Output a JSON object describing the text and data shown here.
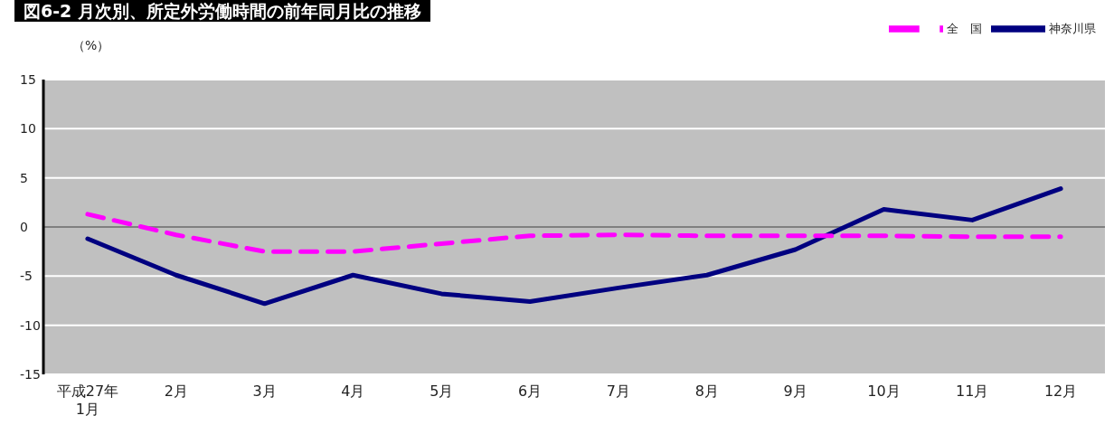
{
  "chart_data": {
    "type": "line",
    "title": "図6-2 月次別、所定外労働時間の前年同月比の推移",
    "ylabel": "（%）",
    "categories": [
      "平成27年\n1月",
      "2月",
      "3月",
      "4月",
      "5月",
      "6月",
      "7月",
      "8月",
      "9月",
      "10月",
      "11月",
      "12月"
    ],
    "series": [
      {
        "name": "神奈川県",
        "color": "#000080",
        "line_style": "solid",
        "values": [
          -1.2,
          -4.9,
          -7.8,
          -4.9,
          -6.8,
          -7.6,
          -6.2,
          -4.9,
          -2.3,
          1.8,
          0.7,
          3.9
        ]
      },
      {
        "name": "全　国",
        "color": "#ff00ff",
        "line_style": "dashed",
        "values": [
          1.3,
          -0.8,
          -2.5,
          -2.5,
          -1.7,
          -0.9,
          -0.8,
          -0.9,
          -0.9,
          -0.9,
          -1.0,
          -1.0
        ]
      }
    ],
    "ylim": [
      -15,
      15
    ],
    "yticks": [
      -15,
      -10,
      -5,
      0,
      5,
      10,
      15
    ],
    "grid": "y",
    "legend": "top right",
    "marker": "none",
    "ref_lines": [
      {
        "axis": "y",
        "value": 0,
        "color": "#000000"
      }
    ]
  }
}
